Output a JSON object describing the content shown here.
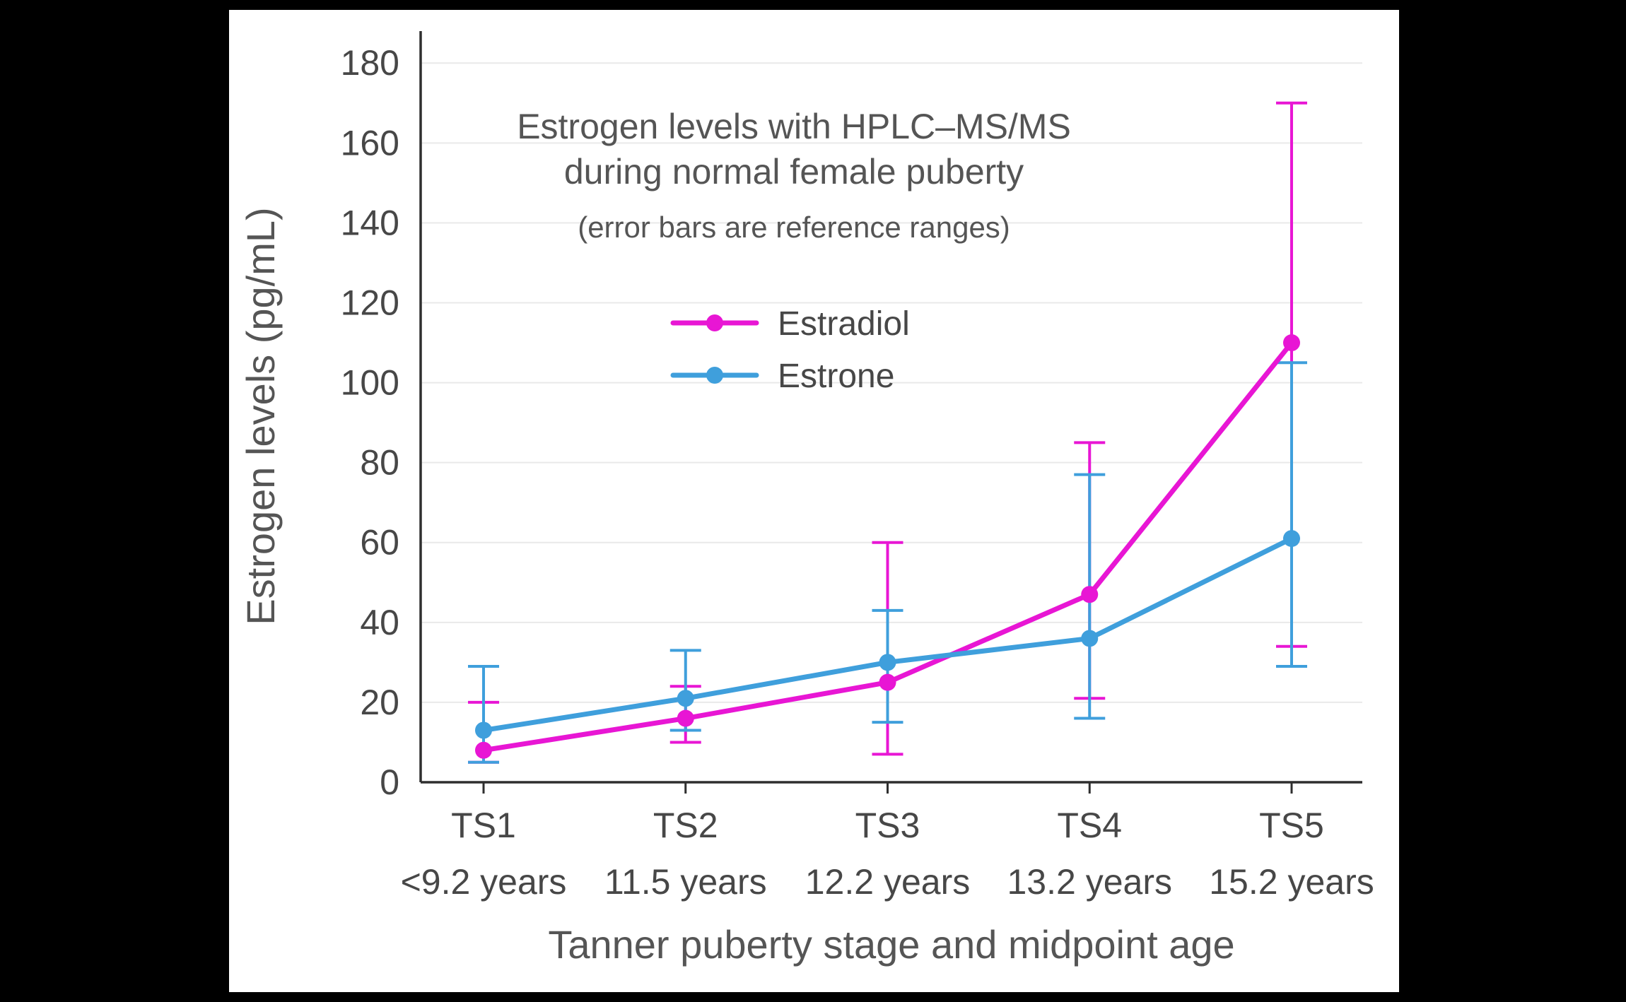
{
  "figure": {
    "background_color": "#ffffff",
    "letterbox_color": "#000000"
  },
  "chart_data": {
    "type": "line",
    "title_lines": [
      "Estrogen levels with HPLC–MS/MS",
      "during normal female puberty"
    ],
    "subtitle": "(error bars are reference ranges)",
    "xlabel": "Tanner puberty stage and midpoint age",
    "ylabel": "Estrogen levels (pg/mL)",
    "categories": [
      "TS1",
      "TS2",
      "TS3",
      "TS4",
      "TS5"
    ],
    "category_sublabels": [
      "<9.2 years",
      "11.5 years",
      "12.2 years",
      "13.2 years",
      "15.2 years"
    ],
    "ylim": [
      0,
      188
    ],
    "yticks": [
      0,
      20,
      40,
      60,
      80,
      100,
      120,
      140,
      160,
      180
    ],
    "grid": true,
    "legend": {
      "position": "inside-upper-left",
      "entries": [
        "Estradiol",
        "Estrone"
      ]
    },
    "series": [
      {
        "name": "Estradiol",
        "color": "#e816d4",
        "values": [
          8,
          16,
          25,
          47,
          110
        ],
        "error_low": [
          5,
          10,
          7,
          21,
          34
        ],
        "error_high": [
          20,
          24,
          60,
          85,
          170
        ]
      },
      {
        "name": "Estrone",
        "color": "#3f9fdc",
        "values": [
          13,
          21,
          30,
          36,
          61
        ],
        "error_low": [
          5,
          13,
          15,
          16,
          29
        ],
        "error_high": [
          29,
          33,
          43,
          77,
          105
        ]
      }
    ]
  }
}
